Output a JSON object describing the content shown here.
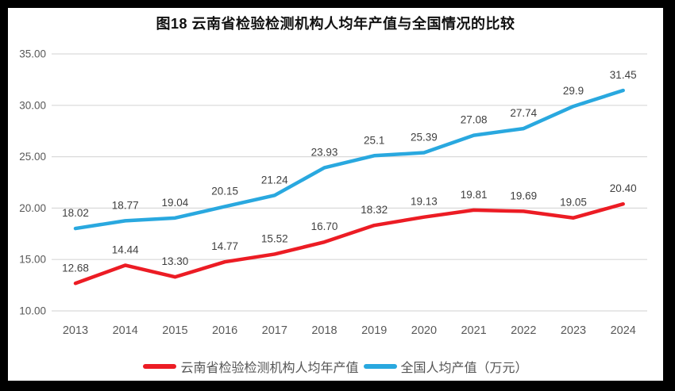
{
  "chart_data": {
    "type": "line",
    "title": "图18  云南省检验检测机构人均年产值与全国情况的比较",
    "x": [
      "2013",
      "2014",
      "2015",
      "2016",
      "2017",
      "2018",
      "2019",
      "2020",
      "2021",
      "2022",
      "2023",
      "2024"
    ],
    "series": [
      {
        "name": "云南省检验检测机构人均年产值",
        "color": "#EC1C24",
        "values": [
          12.68,
          14.44,
          13.3,
          14.77,
          15.52,
          16.7,
          18.32,
          19.13,
          19.81,
          19.69,
          19.05,
          20.4
        ],
        "labels": [
          "12.68",
          "14.44",
          "13.30",
          "14.77",
          "15.52",
          "16.70",
          "18.32",
          "19.13",
          "19.81",
          "19.69",
          "19.05",
          "20.40"
        ]
      },
      {
        "name": "全国人均产值（万元）",
        "color": "#29A8DF",
        "values": [
          18.02,
          18.77,
          19.04,
          20.15,
          21.24,
          23.93,
          25.1,
          25.39,
          27.08,
          27.74,
          29.9,
          31.45
        ],
        "labels": [
          "18.02",
          "18.77",
          "19.04",
          "20.15",
          "21.24",
          "23.93",
          "25.1",
          "25.39",
          "27.08",
          "27.74",
          "29.9",
          "31.45"
        ]
      }
    ],
    "ylim": [
      10,
      35
    ],
    "ytick_step": 5,
    "yticks": [
      "10.00",
      "15.00",
      "20.00",
      "25.00",
      "30.00",
      "35.00"
    ],
    "grid": true,
    "legend_position": "bottom"
  },
  "colors": {
    "frame": "#000000",
    "panel": "#FFFFFF",
    "grid": "#D9D9D9",
    "axis_text": "#595959",
    "data_label": "#404040",
    "title_text": "#111111",
    "legend_text": "#555555"
  }
}
